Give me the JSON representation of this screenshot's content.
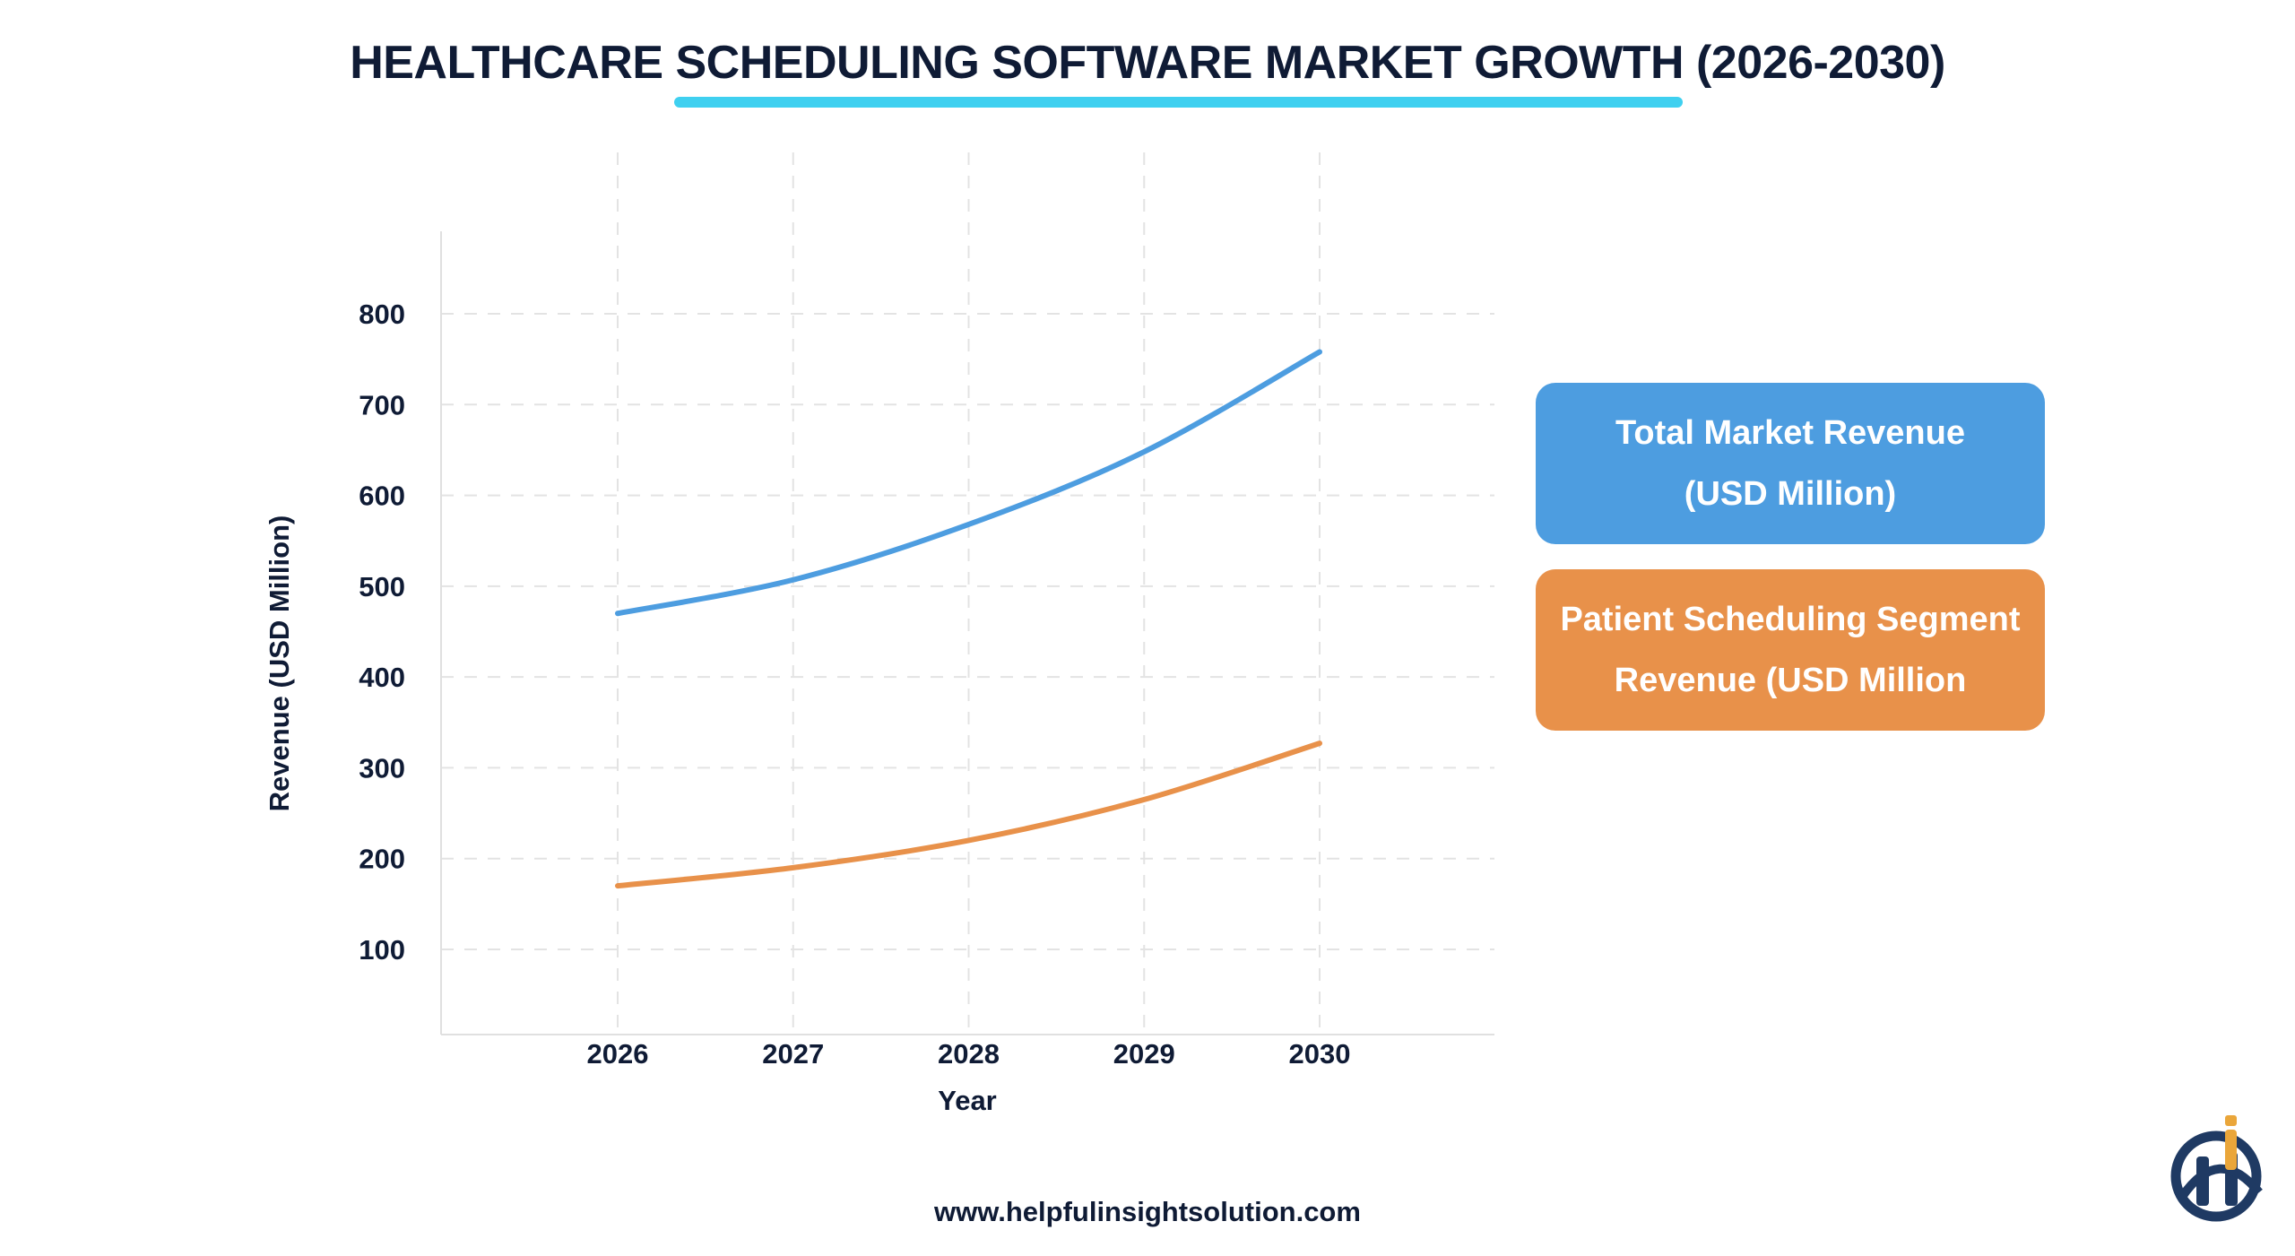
{
  "title": "HEALTHCARE SCHEDULING SOFTWARE MARKET GROWTH (2026-2030)",
  "footer": "www.helpfulinsightsolution.com",
  "logo_text": "Hi",
  "colors": {
    "title": "#0f1b35",
    "underline": "#3fd0f0",
    "total": "#4d9de0",
    "segment": "#e8914a"
  },
  "chart_data": {
    "type": "line",
    "title": "HEALTHCARE SCHEDULING SOFTWARE MARKET GROWTH (2026-2030)",
    "xlabel": "Year",
    "ylabel": "Revenue (USD Million)",
    "x": [
      "2026",
      "2027",
      "2028",
      "2029",
      "2030"
    ],
    "yticks": [
      100,
      200,
      300,
      400,
      500,
      600,
      700,
      800
    ],
    "ylim": [
      10,
      890
    ],
    "grid": true,
    "legend_position": "right",
    "series": [
      {
        "name": "Total Market Revenue (USD Million)",
        "color": "#4d9de0",
        "values": [
          470,
          507,
          568,
          648,
          758
        ]
      },
      {
        "name": "Patient Scheduling Segment Revenue (USD Million",
        "color": "#e8914a",
        "values": [
          170,
          190,
          220,
          265,
          327
        ]
      }
    ]
  }
}
